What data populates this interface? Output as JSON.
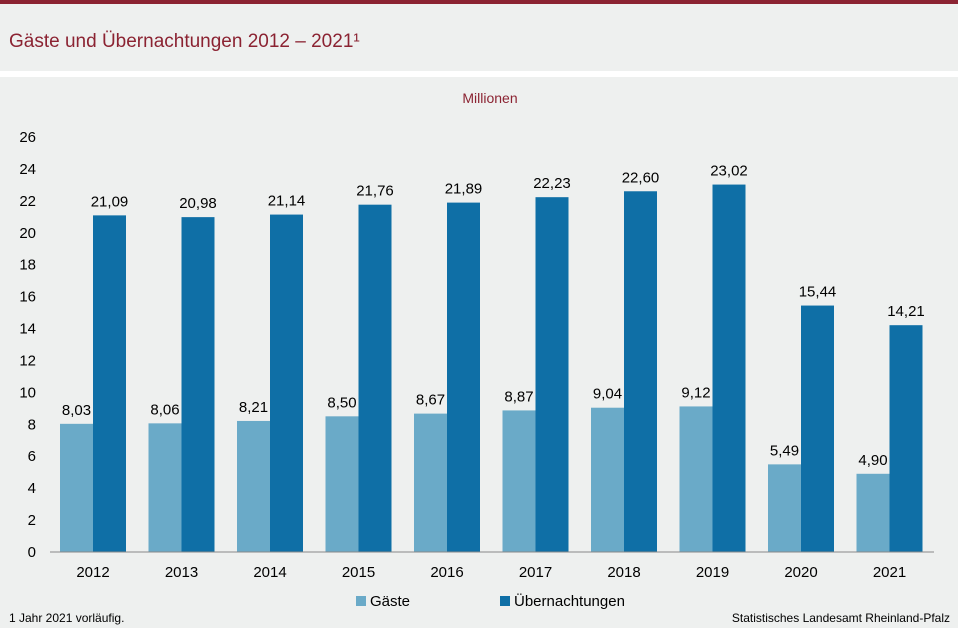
{
  "header": {
    "title": "Gäste und Übernachtungen 2012 – 2021¹"
  },
  "colors": {
    "accent": "#8b2332",
    "guests": "#6aaac8",
    "nights": "#0f6fa6",
    "background": "#eef0ef"
  },
  "chart_data": {
    "type": "bar",
    "unit_label": "Millionen",
    "categories": [
      "2012",
      "2013",
      "2014",
      "2015",
      "2016",
      "2017",
      "2018",
      "2019",
      "2020",
      "2021"
    ],
    "series": [
      {
        "name": "Gäste",
        "color": "#6aaac8",
        "values": [
          8.03,
          8.06,
          8.21,
          8.5,
          8.67,
          8.87,
          9.04,
          9.12,
          5.49,
          4.9
        ],
        "labels": [
          "8,03",
          "8,06",
          "8,21",
          "8,50",
          "8,67",
          "8,87",
          "9,04",
          "9,12",
          "5,49",
          "4,90"
        ]
      },
      {
        "name": "Übernachtungen",
        "color": "#0f6fa6",
        "values": [
          21.09,
          20.98,
          21.14,
          21.76,
          21.89,
          22.23,
          22.6,
          23.02,
          15.44,
          14.21
        ],
        "labels": [
          "21,09",
          "20,98",
          "21,14",
          "21,76",
          "21,89",
          "22,23",
          "22,60",
          "23,02",
          "15,44",
          "14,21"
        ]
      }
    ],
    "ylim": [
      0,
      26
    ],
    "yticks": [
      "0",
      "2",
      "4",
      "6",
      "8",
      "10",
      "12",
      "14",
      "16",
      "18",
      "20",
      "22",
      "24",
      "26"
    ],
    "grid": false,
    "legend": "bottom-center"
  },
  "footer": {
    "note": "1 Jahr 2021 vorläufig.",
    "source": "Statistisches Landesamt Rheinland-Pfalz"
  }
}
